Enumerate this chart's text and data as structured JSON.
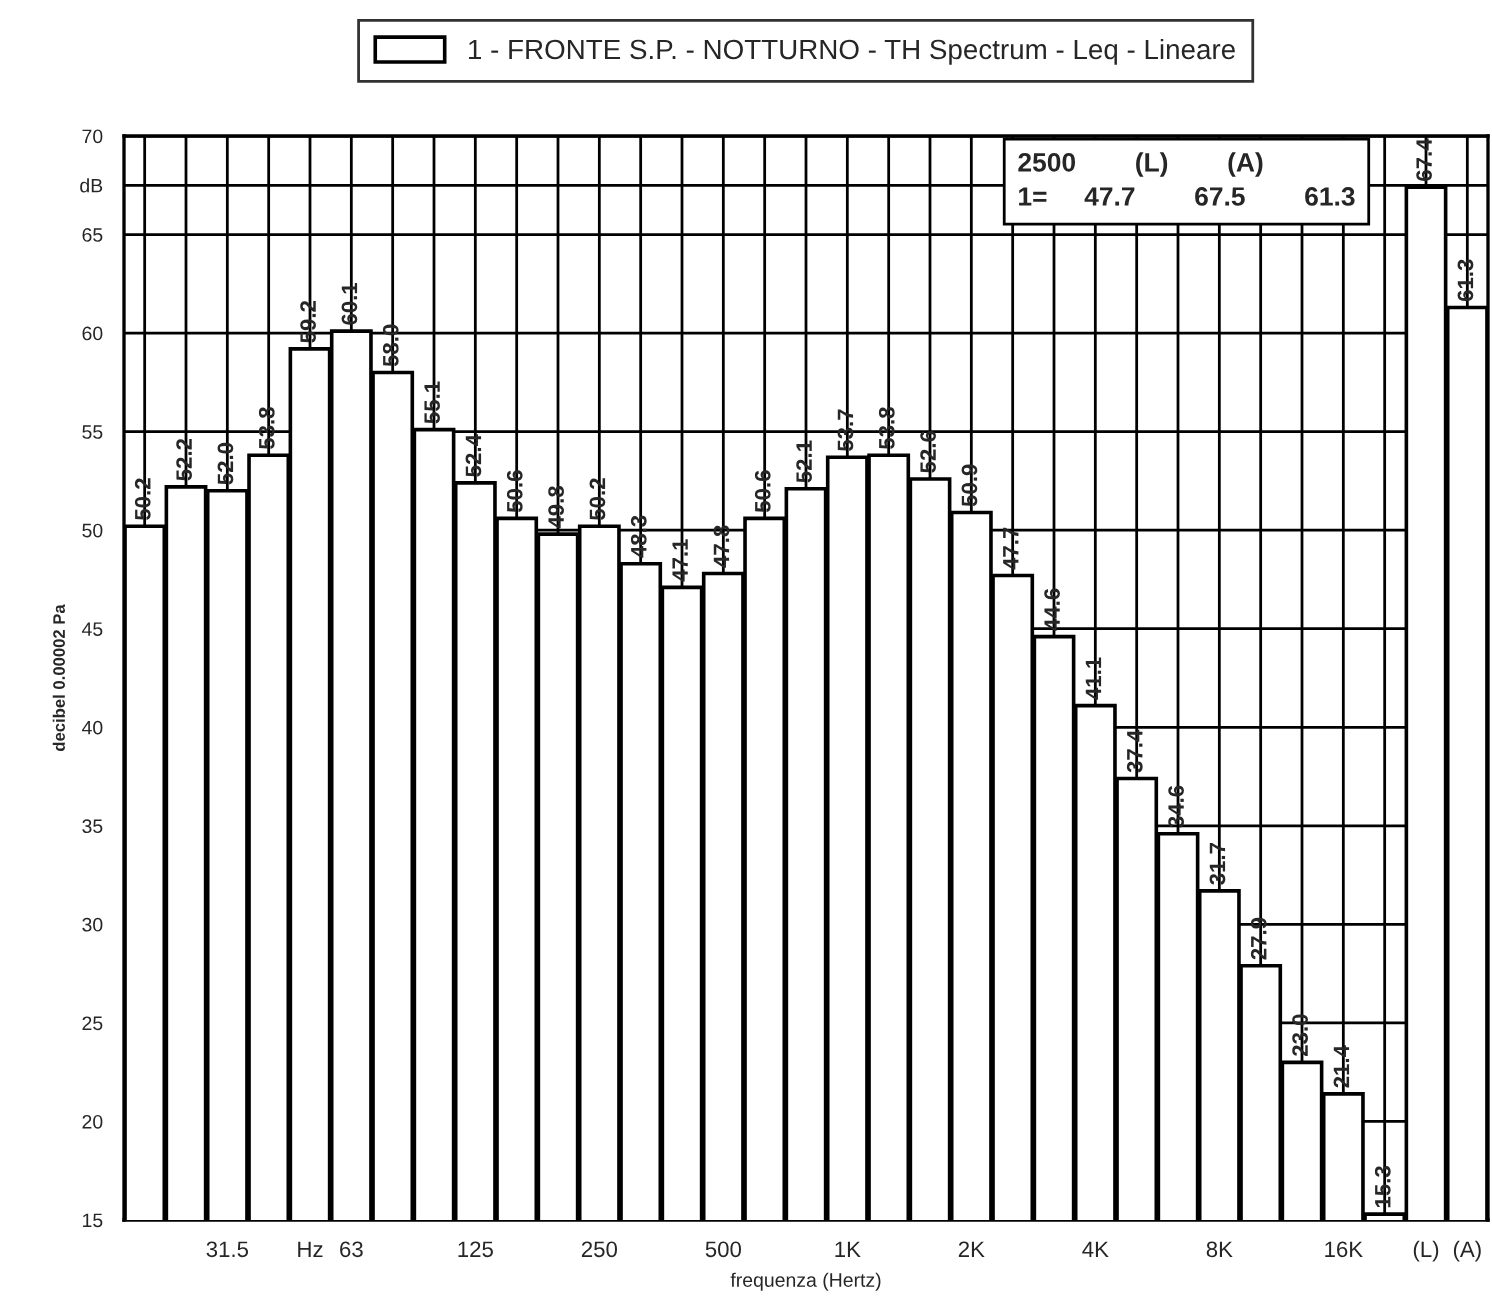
{
  "chart_data": {
    "type": "bar",
    "categories": [
      null,
      null,
      "31.5",
      null,
      "Hz",
      "63",
      null,
      null,
      "125",
      null,
      null,
      "250",
      null,
      null,
      "500",
      null,
      null,
      "1K",
      null,
      null,
      "2K",
      null,
      null,
      "4K",
      null,
      null,
      "8K",
      null,
      null,
      "16K",
      null,
      "(L)",
      "(A)"
    ],
    "series": [
      {
        "name": "1 - FRONTE S.P. - NOTTURNO - TH Spectrum - Leq - Lineare",
        "color": "#ffffff",
        "values": [
          50.2,
          52.2,
          52.0,
          53.8,
          59.2,
          60.1,
          58.0,
          55.1,
          52.4,
          50.6,
          49.8,
          50.2,
          48.3,
          47.1,
          47.8,
          50.6,
          52.1,
          53.7,
          53.8,
          52.6,
          50.9,
          47.7,
          44.6,
          41.1,
          37.4,
          34.6,
          31.7,
          27.9,
          23.0,
          21.4,
          15.3,
          67.4,
          61.3
        ],
        "value_labels": [
          "50.2",
          "52.2",
          "52.0",
          "53.8",
          "59.2",
          "60.1",
          "58.0",
          "55.1",
          "52.4",
          "50.6",
          "49.8",
          "50.2",
          "48.3",
          "47.1",
          "47.8",
          "50.6",
          "52.1",
          "53.7",
          "53.8",
          "52.6",
          "50.9",
          "47.7",
          "44.6",
          "41.1",
          "37.4",
          "34.6",
          "31.7",
          "27.9",
          "23.0",
          "21.4",
          "15.3",
          "67.4",
          "61.3"
        ]
      }
    ],
    "xlabel": "frequenza (Hertz)",
    "ylabel": "decibel 0.00002 Pa",
    "ylim": [
      15,
      70
    ],
    "yticks": [
      15,
      20,
      25,
      30,
      35,
      40,
      45,
      50,
      55,
      60,
      65,
      {
        "value": 67.5,
        "label": "dB"
      },
      70
    ],
    "grid": true,
    "legend": "top",
    "annotations": [
      "2500        (L)        (A)",
      "1=     47.7        67.5        61.3"
    ]
  }
}
